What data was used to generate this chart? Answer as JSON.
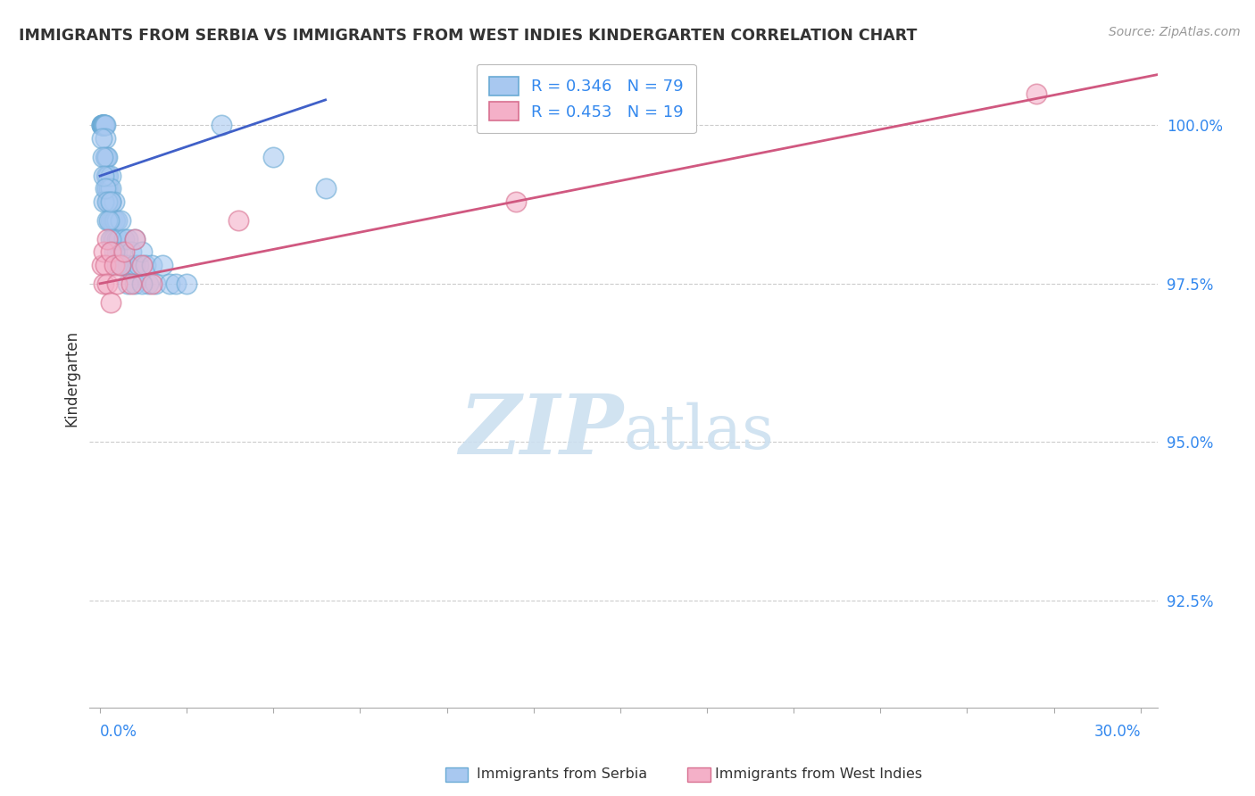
{
  "title": "IMMIGRANTS FROM SERBIA VS IMMIGRANTS FROM WEST INDIES KINDERGARTEN CORRELATION CHART",
  "source": "Source: ZipAtlas.com",
  "ylabel": "Kindergarten",
  "ytick_labels": [
    "92.5%",
    "95.0%",
    "97.5%",
    "100.0%"
  ],
  "ytick_values": [
    92.5,
    95.0,
    97.5,
    100.0
  ],
  "ymin": 90.8,
  "ymax": 101.2,
  "xmin": -0.003,
  "xmax": 0.305,
  "legend_serbia": "R = 0.346   N = 79",
  "legend_west_indies": "R = 0.453   N = 19",
  "color_serbia": "#a8c8f0",
  "color_serbia_edge": "#6aaad4",
  "color_west_indies": "#f4b0c8",
  "color_west_indies_edge": "#d87090",
  "trendline_serbia_color": "#4060c8",
  "trendline_west_indies_color": "#d05880",
  "watermark_color": "#cce0f0",
  "background_color": "#ffffff",
  "grid_color": "#cccccc",
  "serbia_x": [
    0.0005,
    0.0005,
    0.0005,
    0.0008,
    0.0008,
    0.001,
    0.001,
    0.001,
    0.001,
    0.001,
    0.0012,
    0.0012,
    0.0015,
    0.0015,
    0.0015,
    0.0018,
    0.0018,
    0.002,
    0.002,
    0.002,
    0.002,
    0.0022,
    0.0022,
    0.0025,
    0.0025,
    0.003,
    0.003,
    0.003,
    0.003,
    0.003,
    0.0032,
    0.0035,
    0.0035,
    0.004,
    0.004,
    0.004,
    0.0045,
    0.005,
    0.005,
    0.005,
    0.0055,
    0.006,
    0.006,
    0.007,
    0.007,
    0.008,
    0.008,
    0.009,
    0.01,
    0.01,
    0.011,
    0.012,
    0.013,
    0.014,
    0.015,
    0.016,
    0.018,
    0.02,
    0.022,
    0.025,
    0.0005,
    0.0008,
    0.001,
    0.001,
    0.0015,
    0.002,
    0.002,
    0.0025,
    0.003,
    0.003,
    0.004,
    0.005,
    0.006,
    0.008,
    0.01,
    0.012,
    0.035,
    0.05,
    0.065
  ],
  "serbia_y": [
    100.0,
    100.0,
    100.0,
    100.0,
    100.0,
    100.0,
    100.0,
    100.0,
    100.0,
    100.0,
    100.0,
    100.0,
    100.0,
    99.8,
    99.5,
    99.5,
    99.2,
    99.5,
    99.2,
    99.0,
    99.0,
    99.2,
    98.8,
    99.0,
    98.8,
    99.2,
    99.0,
    98.8,
    98.5,
    98.5,
    98.8,
    98.5,
    98.2,
    98.8,
    98.5,
    98.2,
    98.5,
    98.5,
    98.2,
    98.0,
    98.2,
    98.5,
    98.0,
    98.2,
    97.8,
    98.2,
    97.8,
    98.0,
    98.2,
    97.8,
    97.8,
    98.0,
    97.8,
    97.5,
    97.8,
    97.5,
    97.8,
    97.5,
    97.5,
    97.5,
    99.8,
    99.5,
    99.2,
    98.8,
    99.0,
    98.8,
    98.5,
    98.5,
    98.8,
    98.2,
    98.0,
    97.8,
    97.8,
    97.5,
    97.5,
    97.5,
    100.0,
    99.5,
    99.0
  ],
  "west_indies_x": [
    0.0005,
    0.001,
    0.001,
    0.0015,
    0.002,
    0.002,
    0.003,
    0.003,
    0.004,
    0.005,
    0.006,
    0.007,
    0.009,
    0.01,
    0.012,
    0.015,
    0.04,
    0.12,
    0.27
  ],
  "west_indies_y": [
    97.8,
    98.0,
    97.5,
    97.8,
    98.2,
    97.5,
    98.0,
    97.2,
    97.8,
    97.5,
    97.8,
    98.0,
    97.5,
    98.2,
    97.8,
    97.5,
    98.5,
    98.8,
    100.5
  ],
  "trendline_serbia_x0": 0.0,
  "trendline_serbia_y0": 99.2,
  "trendline_serbia_x1": 0.065,
  "trendline_serbia_y1": 100.4,
  "trendline_wi_x0": 0.0,
  "trendline_wi_y0": 97.5,
  "trendline_wi_x1": 0.305,
  "trendline_wi_y1": 100.8
}
